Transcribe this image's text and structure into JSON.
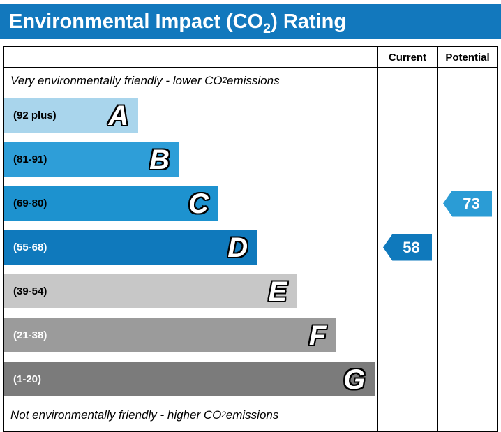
{
  "colors": {
    "banner": "#1278bd",
    "chart_border": "#000000"
  },
  "title": {
    "pre": "Environmental Impact (CO",
    "sub": "2",
    "post": ") Rating"
  },
  "columns": {
    "current_label": "Current",
    "potential_label": "Potential"
  },
  "notes": {
    "top_pre": "Very environmentally friendly - lower CO",
    "top_sub": "2",
    "top_post": " emissions",
    "bottom_pre": "Not environmentally friendly - higher CO",
    "bottom_sub": "2",
    "bottom_post": " emissions"
  },
  "chart_data": {
    "type": "bar",
    "title": "Environmental Impact (CO2) Rating",
    "bands": [
      {
        "letter": "A",
        "range_label": "(92 plus)",
        "range_min": 92,
        "range_max": 100,
        "bar_width_pct": 36,
        "color": "#a9d5ec",
        "label_color": "#000000"
      },
      {
        "letter": "B",
        "range_label": "(81-91)",
        "range_min": 81,
        "range_max": 91,
        "bar_width_pct": 47,
        "color": "#2e9ed8",
        "label_color": "#000000"
      },
      {
        "letter": "C",
        "range_label": "(69-80)",
        "range_min": 69,
        "range_max": 80,
        "bar_width_pct": 57.5,
        "color": "#1d92cf",
        "label_color": "#000000"
      },
      {
        "letter": "D",
        "range_label": "(55-68)",
        "range_min": 55,
        "range_max": 68,
        "bar_width_pct": 68,
        "color": "#0f79bc",
        "label_color": "#ffffff"
      },
      {
        "letter": "E",
        "range_label": "(39-54)",
        "range_min": 39,
        "range_max": 54,
        "bar_width_pct": 78.5,
        "color": "#c7c7c7",
        "label_color": "#000000"
      },
      {
        "letter": "F",
        "range_label": "(21-38)",
        "range_min": 21,
        "range_max": 38,
        "bar_width_pct": 89,
        "color": "#9b9b9b",
        "label_color": "#ffffff"
      },
      {
        "letter": "G",
        "range_label": "(1-20)",
        "range_min": 1,
        "range_max": 20,
        "bar_width_pct": 99.5,
        "color": "#7b7b7b",
        "label_color": "#ffffff"
      }
    ],
    "current": {
      "value": 58,
      "band": "D",
      "band_index": 3,
      "arrow_color": "#0f79bc"
    },
    "potential": {
      "value": 73,
      "band": "C",
      "band_index": 2,
      "arrow_color": "#2b9cd5"
    }
  }
}
